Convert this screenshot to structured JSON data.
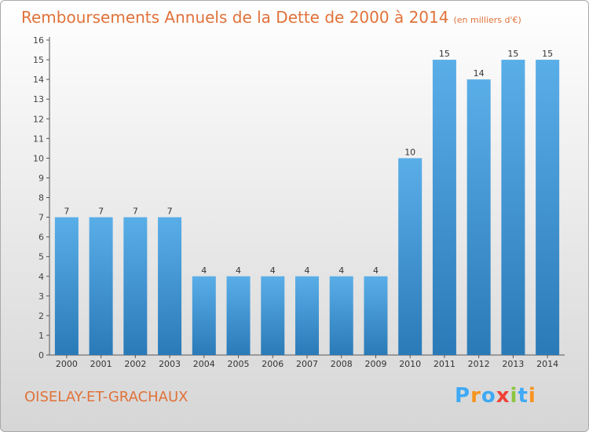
{
  "title": "Remboursements Annuels de la Dette de 2000 à 2014",
  "subtitle": "(en milliers d'€)",
  "location": "OISELAY-ET-GRACHAUX",
  "logo": {
    "letters": [
      "P",
      "r",
      "o",
      "x",
      "i",
      "t",
      "i"
    ],
    "colors": [
      "#3fa9f5",
      "#f7931e",
      "#3fa9f5",
      "#ef4136",
      "#8cc63f",
      "#3fa9f5",
      "#f7931e"
    ]
  },
  "colors": {
    "bar_top": "#5aaee8",
    "bar_bottom": "#2a7ab8",
    "title": "#e0723a",
    "axis": "#555555"
  },
  "chart_data": {
    "type": "bar",
    "categories": [
      "2000",
      "2001",
      "2002",
      "2003",
      "2004",
      "2005",
      "2006",
      "2007",
      "2008",
      "2009",
      "2010",
      "2011",
      "2012",
      "2013",
      "2014"
    ],
    "values": [
      7,
      7,
      7,
      7,
      4,
      4,
      4,
      4,
      4,
      4,
      10,
      15,
      14,
      15,
      15
    ],
    "ylim": [
      0,
      16
    ],
    "yticks": [
      0,
      1,
      2,
      3,
      4,
      5,
      6,
      7,
      8,
      9,
      10,
      11,
      12,
      13,
      14,
      15,
      16
    ],
    "grid": false,
    "data_labels": true
  }
}
